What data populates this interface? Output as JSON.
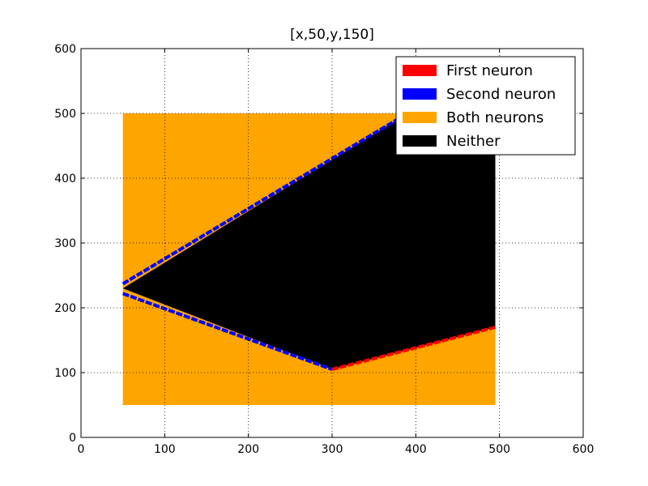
{
  "chart_data": {
    "type": "scatter",
    "title": "[x,50,y,150]",
    "xlabel": "",
    "ylabel": "",
    "xlim": [
      0,
      600
    ],
    "ylim": [
      0,
      600
    ],
    "xticks": [
      "0",
      "100",
      "200",
      "300",
      "400",
      "500",
      "600"
    ],
    "yticks": [
      "0",
      "100",
      "200",
      "300",
      "400",
      "500",
      "600"
    ],
    "grid": true,
    "legend_position": "top-right",
    "grid_region": {
      "x_range": [
        50,
        495
      ],
      "y_range": [
        50,
        500
      ]
    },
    "series": [
      {
        "name": "First neuron",
        "color": "#ff0000"
      },
      {
        "name": "Second neuron",
        "color": "#0000ff"
      },
      {
        "name": "Both neurons",
        "color": "#ffa500"
      },
      {
        "name": "Neither",
        "color": "#000000"
      }
    ],
    "regions": {
      "neither_polygon": [
        [
          50,
          230
        ],
        [
          300,
          105
        ],
        [
          495,
          170
        ],
        [
          495,
          500
        ],
        [
          390,
          500
        ]
      ],
      "second_neuron_boundary_upper": [
        [
          50,
          237
        ],
        [
          390,
          500
        ]
      ],
      "second_neuron_boundary_lower": [
        [
          50,
          222
        ],
        [
          300,
          105
        ]
      ],
      "first_neuron_boundary": [
        [
          300,
          105
        ],
        [
          495,
          170
        ]
      ]
    }
  }
}
